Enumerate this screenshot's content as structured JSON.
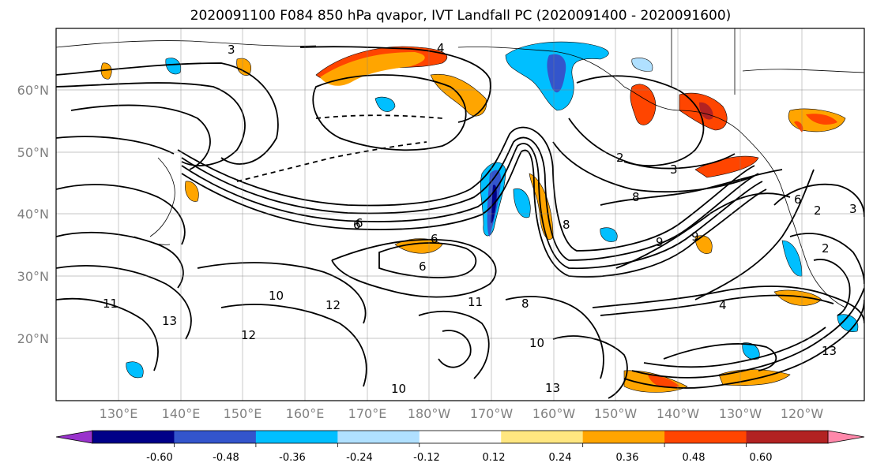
{
  "title": "2020091100 F084 850 hPa qvapor, IVT Landfall PC (2020091400 - 2020091600)",
  "map": {
    "lat_labels": [
      "60°N",
      "50°N",
      "40°N",
      "30°N",
      "20°N"
    ],
    "lon_labels": [
      "130°E",
      "140°E",
      "150°E",
      "160°E",
      "170°E",
      "180°W",
      "170°W",
      "160°W",
      "150°W",
      "140°W",
      "130°W",
      "120°W"
    ],
    "contour_labels": [
      "3",
      "4",
      "6",
      "6",
      "8",
      "8",
      "9",
      "9",
      "2",
      "3",
      "2",
      "3",
      "2",
      "4",
      "10",
      "11",
      "12",
      "12",
      "13",
      "13",
      "13",
      "6",
      "6",
      "6",
      "8",
      "11",
      "10",
      "10"
    ]
  },
  "colorbar": {
    "colors": [
      "#9933cc",
      "#000088",
      "#3355cc",
      "#00bfff",
      "#b0e0ff",
      "#ffffff",
      "#ffe680",
      "#ffa500",
      "#ff4500",
      "#b22222",
      "#ff88aa"
    ],
    "tick_labels": [
      "-0.60",
      "-0.48",
      "-0.36",
      "-0.24",
      "-0.12",
      "0.12",
      "0.24",
      "0.36",
      "0.48",
      "0.60"
    ]
  }
}
